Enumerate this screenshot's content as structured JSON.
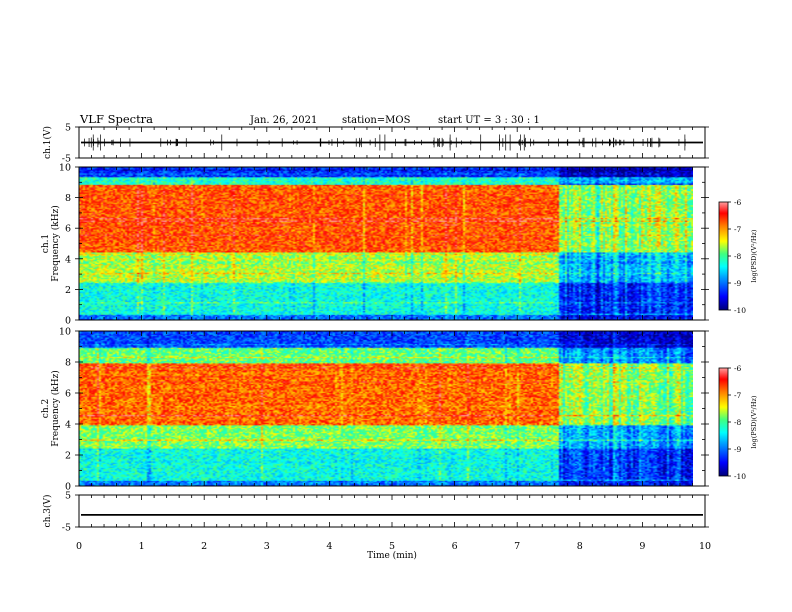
{
  "header": {
    "title": "VLF Spectra",
    "date": "Jan. 26, 2021",
    "station": "station=MOS",
    "start": "start UT =  3 : 30 : 1"
  },
  "colors": {
    "colormap": [
      "#00007f",
      "#0000ff",
      "#0080ff",
      "#00ffff",
      "#40ff80",
      "#ffff00",
      "#ff8000",
      "#ff0000",
      "#ff9090"
    ]
  },
  "chart_data": [
    {
      "type": "line",
      "name": "ch1-waveform",
      "ylabel": "ch.1(V)",
      "ylim": [
        -5,
        5
      ],
      "yticks": [
        "5",
        "-5"
      ],
      "xlim": [
        0,
        10
      ],
      "level": 0
    },
    {
      "type": "heatmap",
      "name": "ch1-spectrogram",
      "ylabel": "ch.1",
      "ylabel2": "Frequency (kHz)",
      "xlim": [
        0,
        10
      ],
      "ylim": [
        0,
        10
      ],
      "yticks": [
        "0",
        "2",
        "4",
        "6",
        "8",
        "10"
      ],
      "colorbar": {
        "label": "log(PSD)(V²/Hz)",
        "range": [
          -10,
          -6
        ],
        "ticks": [
          "-6",
          "-7",
          "-8",
          "-9",
          "-10"
        ]
      },
      "intensity_bands": [
        {
          "f": [
            0.0,
            0.4
          ],
          "level": -9.0
        },
        {
          "f": [
            0.4,
            2.5
          ],
          "level": -8.3
        },
        {
          "f": [
            2.5,
            4.5
          ],
          "level": -7.6
        },
        {
          "f": [
            4.5,
            8.9
          ],
          "level": -6.7
        },
        {
          "f": [
            8.9,
            9.4
          ],
          "level": -8.2
        },
        {
          "f": [
            9.4,
            10.0
          ],
          "level": -9.3
        }
      ]
    },
    {
      "type": "heatmap",
      "name": "ch2-spectrogram",
      "ylabel": "ch.2",
      "ylabel2": "Frequency (kHz)",
      "xlim": [
        0,
        10
      ],
      "ylim": [
        0,
        10
      ],
      "yticks": [
        "0",
        "2",
        "4",
        "6",
        "8",
        "10"
      ],
      "colorbar": {
        "label": "log(PSD)(V²/Hz)",
        "range": [
          -10,
          -6
        ],
        "ticks": [
          "-6",
          "-7",
          "-8",
          "-9",
          "-10"
        ]
      },
      "intensity_bands": [
        {
          "f": [
            0.0,
            0.4
          ],
          "level": -9.0
        },
        {
          "f": [
            0.4,
            2.5
          ],
          "level": -8.3
        },
        {
          "f": [
            2.5,
            4.0
          ],
          "level": -7.8
        },
        {
          "f": [
            4.0,
            8.0
          ],
          "level": -6.8
        },
        {
          "f": [
            8.0,
            9.0
          ],
          "level": -7.9
        },
        {
          "f": [
            9.0,
            10.0
          ],
          "level": -9.2
        }
      ]
    },
    {
      "type": "line",
      "name": "ch3-waveform",
      "ylabel": "ch.3(V)",
      "ylim": [
        -5,
        5
      ],
      "yticks": [
        "5",
        "-5"
      ],
      "xlim": [
        0,
        10
      ],
      "level": -1.2
    }
  ],
  "xaxis": {
    "label": "Time (min)",
    "range": [
      0,
      10
    ],
    "ticks": [
      "0",
      "1",
      "2",
      "3",
      "4",
      "5",
      "6",
      "7",
      "8",
      "9",
      "10"
    ]
  }
}
